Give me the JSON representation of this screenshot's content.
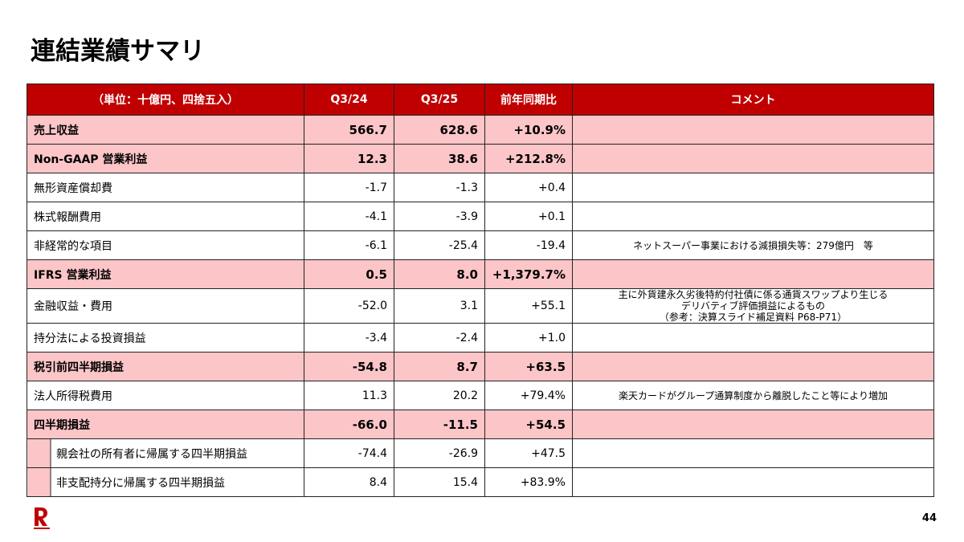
{
  "header": {
    "title": "連結業績サマリ",
    "page_number": "44"
  },
  "table": {
    "columns": [
      "（単位：十億円、四捨五入）",
      "Q3/24",
      "Q3/25",
      "前年同期比",
      "コメント"
    ],
    "rows": [
      {
        "label": "売上収益",
        "q3_24": "566.7",
        "q3_25": "628.6",
        "yoy": "+10.9%"
      },
      {
        "label": "Non-GAAP 営業利益",
        "q3_24": "12.3",
        "q3_25": "38.6",
        "yoy": "+212.8%"
      },
      {
        "label": "無形資産償却費",
        "q3_24": "-1.7",
        "q3_25": "-1.3",
        "yoy": "+0.4"
      },
      {
        "label": "株式報酬費用",
        "q3_24": "-4.1",
        "q3_25": "-3.9",
        "yoy": "+0.1"
      },
      {
        "label": "非経常的な項目",
        "q3_24": "-6.1",
        "q3_25": "-25.4",
        "yoy": "-19.4",
        "comment": [
          "ネットスーパー事業における減損損失等：279億円　等"
        ]
      },
      {
        "label": "IFRS 営業利益",
        "q3_24": "0.5",
        "q3_25": "8.0",
        "yoy": "+1,379.7%"
      },
      {
        "label": "金融収益・費用",
        "q3_24": "-52.0",
        "q3_25": "3.1",
        "yoy": "+55.1",
        "comment": [
          "主に外貨建永久劣後特約付社債に係る通貨スワップより生じる",
          "デリバティブ評価損益によるもの",
          "（参考：決算スライド補足資料 P68-P71）"
        ]
      },
      {
        "label": "持分法による投資損益",
        "q3_24": "-3.4",
        "q3_25": "-2.4",
        "yoy": "+1.0"
      },
      {
        "label": "税引前四半期損益",
        "q3_24": "-54.8",
        "q3_25": "8.7",
        "yoy": "+63.5"
      },
      {
        "label": "法人所得税費用",
        "q3_24": "11.3",
        "q3_25": "20.2",
        "yoy": "+79.4%",
        "comment": [
          "楽天カードがグループ通算制度から離脱したこと等により増加"
        ]
      },
      {
        "label": "四半期損益",
        "q3_24": "-66.0",
        "q3_25": "-11.5",
        "yoy": "+54.5"
      },
      {
        "label": "親会社の所有者に帰属する四半期損益",
        "q3_24": "-74.4",
        "q3_25": "-26.9",
        "yoy": "+47.5"
      },
      {
        "label": "非支配持分に帰属する四半期損益",
        "q3_24": "8.4",
        "q3_25": "15.4",
        "yoy": "+83.9%"
      }
    ]
  }
}
